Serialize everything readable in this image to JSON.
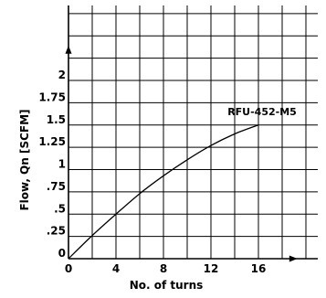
{
  "chart_data": {
    "type": "line",
    "title": "",
    "xlabel": "No. of turns",
    "ylabel": "Flow,  Qn [SCFM]",
    "xlim": [
      0,
      20
    ],
    "ylim": [
      0,
      2.75
    ],
    "x_ticks": [
      0,
      4,
      8,
      12,
      16
    ],
    "x_tick_labels": [
      "0",
      "4",
      "8",
      "12",
      "16"
    ],
    "y_ticks": [
      0,
      0.25,
      0.5,
      0.75,
      1,
      1.25,
      1.5,
      1.75,
      2
    ],
    "y_tick_labels": [
      "0",
      ".25",
      ".5",
      ".75",
      "1",
      "1.25",
      "1.5",
      "1.75",
      "2"
    ],
    "grid": true,
    "series": [
      {
        "name": "RFU-452-M5",
        "x": [
          0,
          2,
          4,
          6,
          8,
          10,
          12,
          14,
          16
        ],
        "y": [
          0,
          0.26,
          0.5,
          0.73,
          0.93,
          1.11,
          1.27,
          1.4,
          1.5
        ]
      }
    ]
  }
}
